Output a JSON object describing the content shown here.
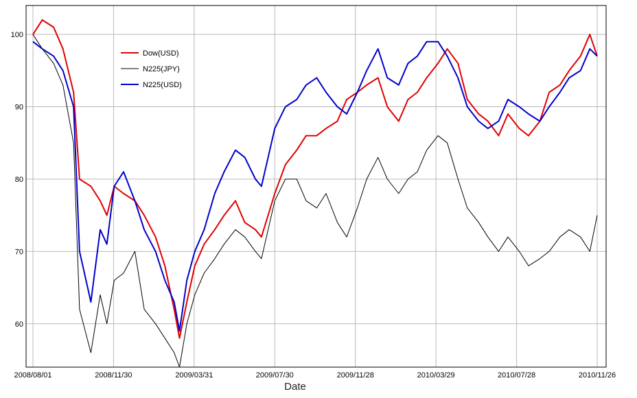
{
  "chart_data": {
    "type": "line",
    "title": "",
    "xlabel": "Date",
    "ylabel": "",
    "x_ticks": [
      "2008/08/01",
      "2008/11/30",
      "2009/03/31",
      "2009/07/30",
      "2009/11/28",
      "2010/03/29",
      "2010/07/28",
      "2010/11/26"
    ],
    "y_ticks": [
      60,
      70,
      80,
      90,
      100
    ],
    "ylim": [
      54,
      104
    ],
    "grid": true,
    "legend": "top-left",
    "x": [
      "2008/08/01",
      "2008/08/15",
      "2008/09/01",
      "2008/09/15",
      "2008/10/01",
      "2008/10/10",
      "2008/10/27",
      "2008/11/10",
      "2008/11/20",
      "2008/12/01",
      "2008/12/15",
      "2009/01/01",
      "2009/01/15",
      "2009/02/01",
      "2009/02/15",
      "2009/03/01",
      "2009/03/09",
      "2009/03/20",
      "2009/04/01",
      "2009/04/15",
      "2009/05/01",
      "2009/05/15",
      "2009/06/01",
      "2009/06/15",
      "2009/07/01",
      "2009/07/10",
      "2009/07/30",
      "2009/08/15",
      "2009/09/01",
      "2009/09/15",
      "2009/10/01",
      "2009/10/15",
      "2009/11/01",
      "2009/11/15",
      "2009/12/01",
      "2009/12/15",
      "2010/01/01",
      "2010/01/15",
      "2010/02/01",
      "2010/02/15",
      "2010/03/01",
      "2010/03/15",
      "2010/04/01",
      "2010/04/15",
      "2010/05/01",
      "2010/05/15",
      "2010/06/01",
      "2010/06/15",
      "2010/07/01",
      "2010/07/15",
      "2010/08/01",
      "2010/08/15",
      "2010/09/01",
      "2010/09/15",
      "2010/10/01",
      "2010/10/15",
      "2010/11/01",
      "2010/11/15",
      "2010/11/26"
    ],
    "series": [
      {
        "name": "Dow(USD)",
        "color": "#e00000",
        "values": [
          100,
          102,
          101,
          98,
          92,
          80,
          79,
          77,
          75,
          79,
          78,
          77,
          75,
          72,
          68,
          62,
          58,
          63,
          68,
          71,
          73,
          75,
          77,
          74,
          73,
          72,
          78,
          82,
          84,
          86,
          86,
          87,
          88,
          91,
          92,
          93,
          94,
          90,
          88,
          91,
          92,
          94,
          96,
          98,
          96,
          91,
          89,
          88,
          86,
          89,
          87,
          86,
          88,
          92,
          93,
          95,
          97,
          100,
          97
        ]
      },
      {
        "name": "N225(JPY)",
        "color": "#000000",
        "values": [
          100,
          98,
          96,
          93,
          85,
          62,
          56,
          64,
          60,
          66,
          67,
          70,
          62,
          60,
          58,
          56,
          54,
          60,
          64,
          67,
          69,
          71,
          73,
          72,
          70,
          69,
          77,
          80,
          80,
          77,
          76,
          78,
          74,
          72,
          76,
          80,
          83,
          80,
          78,
          80,
          81,
          84,
          86,
          85,
          80,
          76,
          74,
          72,
          70,
          72,
          70,
          68,
          69,
          70,
          72,
          73,
          72,
          70,
          75
        ]
      },
      {
        "name": "N225(USD)",
        "color": "#0000cc",
        "values": [
          99,
          98,
          97,
          95,
          90,
          70,
          63,
          73,
          71,
          79,
          81,
          77,
          73,
          70,
          66,
          63,
          59,
          66,
          70,
          73,
          78,
          81,
          84,
          83,
          80,
          79,
          87,
          90,
          91,
          93,
          94,
          92,
          90,
          89,
          92,
          95,
          98,
          94,
          93,
          96,
          97,
          99,
          99,
          97,
          94,
          90,
          88,
          87,
          88,
          91,
          90,
          89,
          88,
          90,
          92,
          94,
          95,
          98,
          97
        ]
      }
    ]
  }
}
